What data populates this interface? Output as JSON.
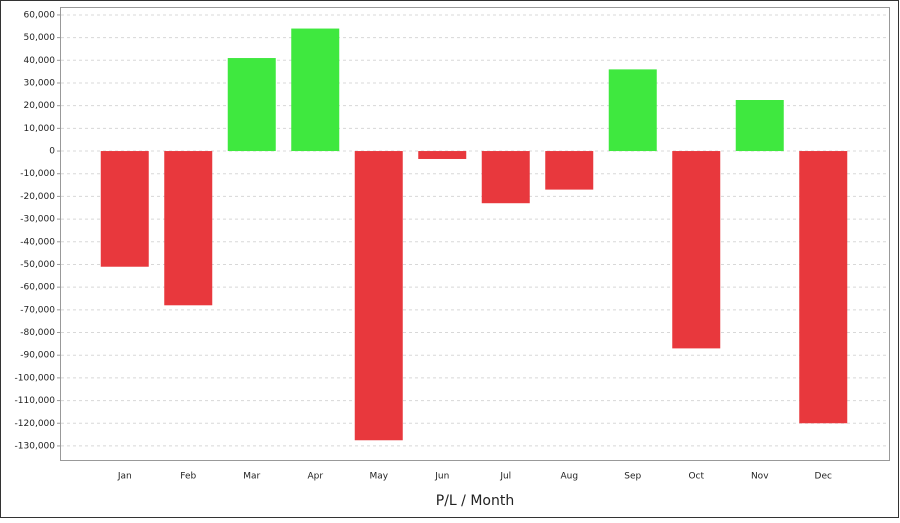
{
  "chart_data": {
    "type": "bar",
    "x_label": "P/L / Month",
    "categories": [
      "Jan",
      "Feb",
      "Mar",
      "Apr",
      "May",
      "Jun",
      "Jul",
      "Aug",
      "Sep",
      "Oct",
      "Nov",
      "Dec"
    ],
    "values": [
      -51000,
      -68000,
      41000,
      54000,
      -127500,
      -3500,
      -23000,
      -17000,
      36000,
      -87000,
      22500,
      -120000
    ],
    "positive_color": "#3fe83f",
    "negative_color": "#e8383d",
    "ylim": [
      -136200,
      63500
    ],
    "yticks": [
      {
        "value": 60000,
        "label": "60,000"
      },
      {
        "value": 50000,
        "label": "50,000"
      },
      {
        "value": 40000,
        "label": "40,000"
      },
      {
        "value": 30000,
        "label": "30,000"
      },
      {
        "value": 20000,
        "label": "20,000"
      },
      {
        "value": 10000,
        "label": "10,000"
      },
      0,
      {
        "value": -10000,
        "label": "-10,000"
      },
      {
        "value": -20000,
        "label": "-20,000"
      },
      {
        "value": -30000,
        "label": "-30,000"
      },
      {
        "value": -40000,
        "label": "-40,000"
      },
      {
        "value": -50000,
        "label": "-50,000"
      },
      {
        "value": -60000,
        "label": "-60,000"
      },
      {
        "value": -70000,
        "label": "-70,000"
      },
      {
        "value": -80000,
        "label": "-80,000"
      },
      {
        "value": -90000,
        "label": "-90,000"
      },
      {
        "value": -100000,
        "label": "-100,000"
      },
      {
        "value": -110000,
        "label": "-110,000"
      },
      {
        "value": -120000,
        "label": "-120,000"
      },
      {
        "value": -130000,
        "label": "-130,000"
      }
    ],
    "grid": true
  }
}
